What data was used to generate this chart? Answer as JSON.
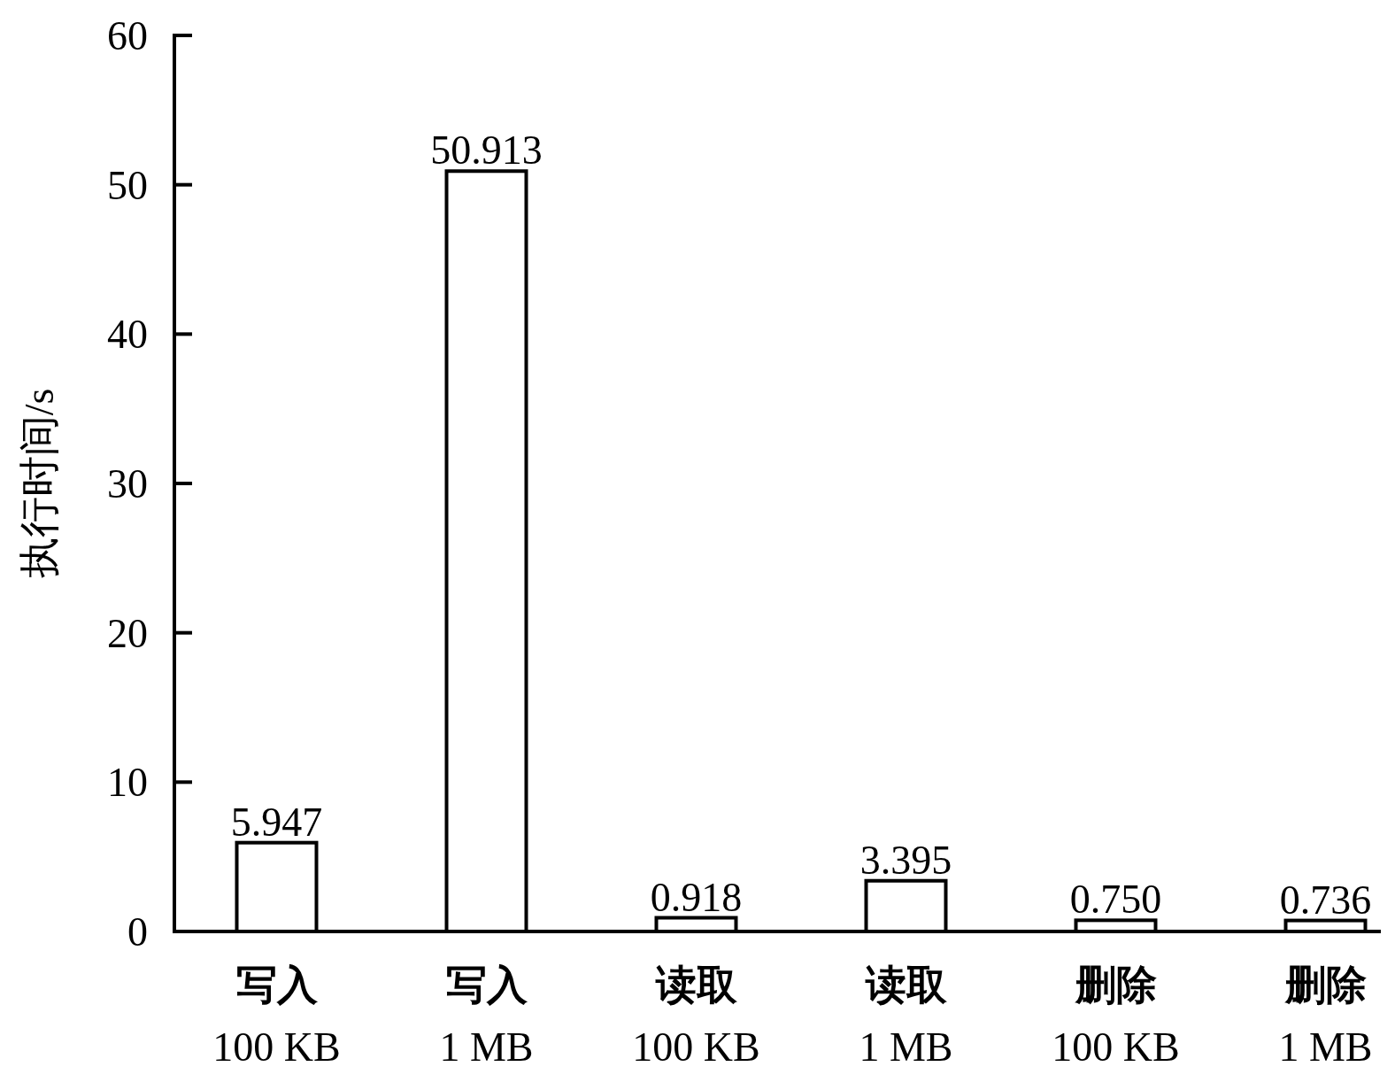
{
  "chart_data": {
    "type": "bar",
    "ylabel": "执行时间/s",
    "categories": [
      "写入\n100 KB",
      "写入\n1 MB",
      "读取\n100 KB",
      "读取\n1 MB",
      "删除\n100 KB",
      "删除\n1 MB"
    ],
    "values": [
      5.947,
      50.913,
      0.918,
      3.395,
      0.75,
      0.736
    ],
    "value_labels": [
      "5.947",
      "50.913",
      "0.918",
      "3.395",
      "0.750",
      "0.736"
    ],
    "color": "#ffffff",
    "ylim": [
      0,
      60
    ],
    "yticks": [
      0,
      10,
      20,
      30,
      40,
      50,
      60
    ]
  }
}
